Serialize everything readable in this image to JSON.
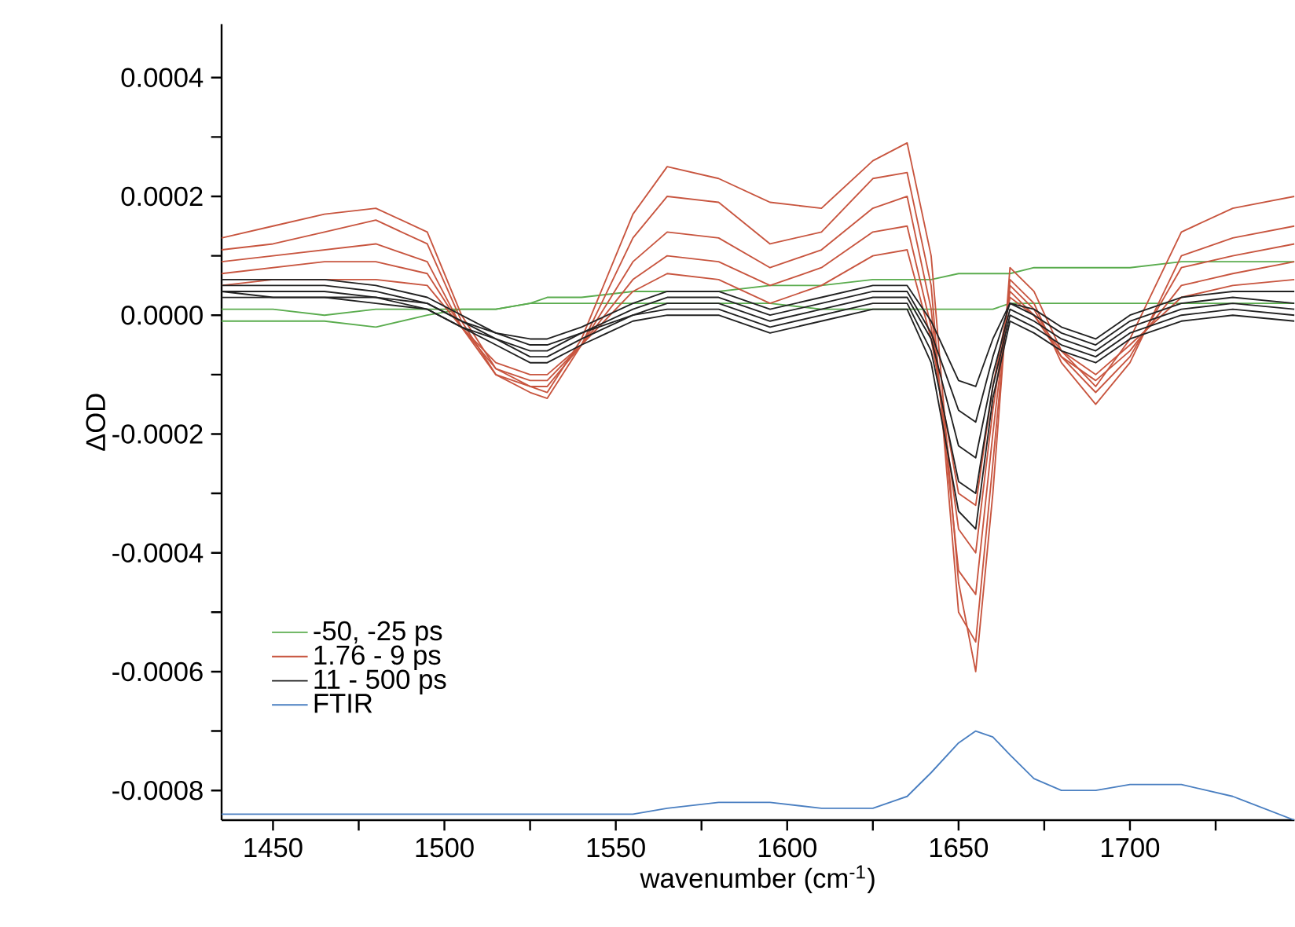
{
  "chart_data": {
    "type": "line",
    "xlabel": "wavenumber (cm$^{-1}$)",
    "ylabel": "ΔOD",
    "legend": "bottom left",
    "x": [
      1435,
      1450,
      1465,
      1480,
      1495,
      1505,
      1515,
      1525,
      1530,
      1540,
      1555,
      1565,
      1580,
      1595,
      1610,
      1625,
      1635,
      1642,
      1650,
      1655,
      1660,
      1665,
      1672,
      1680,
      1690,
      1700,
      1715,
      1730,
      1748
    ],
    "xlim": [
      1435,
      1748
    ],
    "ylim": [
      -0.00085,
      0.00049
    ],
    "xticks": [
      1450,
      {
        "value": 1475,
        "label": null
      },
      1500,
      {
        "value": 1525,
        "label": null
      },
      1550,
      {
        "value": 1575,
        "label": null
      },
      1600,
      {
        "value": 1625,
        "label": null
      },
      1650,
      {
        "value": 1675,
        "label": null
      },
      1700,
      {
        "value": 1725,
        "label": null
      }
    ],
    "yticks": [
      {
        "value": -0.0008,
        "label": "-0.0008"
      },
      {
        "value": -0.0007,
        "label": null
      },
      {
        "value": -0.0006,
        "label": "-0.0006"
      },
      {
        "value": -0.0005,
        "label": null
      },
      {
        "value": -0.0004,
        "label": "-0.0004"
      },
      {
        "value": -0.0003,
        "label": null
      },
      {
        "value": -0.0002,
        "label": "-0.0002"
      },
      {
        "value": -0.0001,
        "label": null
      },
      {
        "value": 0.0,
        "label": "0.0000"
      },
      {
        "value": 0.0001,
        "label": null
      },
      {
        "value": 0.0002,
        "label": "0.0002"
      },
      {
        "value": 0.0003,
        "label": null
      },
      {
        "value": 0.0004,
        "label": "0.0004"
      }
    ],
    "series": [
      {
        "name": "-50, -25 ps",
        "color": "#5aac4e",
        "values": [
          -1e-05,
          -1e-05,
          -1e-05,
          -2e-05,
          0.0,
          1e-05,
          1e-05,
          2e-05,
          3e-05,
          3e-05,
          4e-05,
          4e-05,
          4e-05,
          5e-05,
          5e-05,
          6e-05,
          6e-05,
          6e-05,
          7e-05,
          7e-05,
          7e-05,
          7e-05,
          8e-05,
          8e-05,
          8e-05,
          8e-05,
          9e-05,
          9e-05,
          9e-05
        ]
      },
      {
        "color": "#5aac4e",
        "values": [
          1e-05,
          1e-05,
          0.0,
          1e-05,
          1e-05,
          1e-05,
          1e-05,
          2e-05,
          2e-05,
          2e-05,
          2e-05,
          2e-05,
          2e-05,
          2e-05,
          1e-05,
          1e-05,
          1e-05,
          1e-05,
          1e-05,
          1e-05,
          1e-05,
          2e-05,
          2e-05,
          2e-05,
          2e-05,
          2e-05,
          2e-05,
          2e-05,
          2e-05
        ]
      },
      {
        "name": "1.76 - 9 ps",
        "color": "#c8553f",
        "values": [
          0.00013,
          0.00015,
          0.00017,
          0.00018,
          0.00014,
          0.0,
          -9e-05,
          -0.00012,
          -0.00013,
          -4e-05,
          0.00017,
          0.00025,
          0.00023,
          0.00019,
          0.00018,
          0.00026,
          0.00029,
          0.0001,
          -0.00045,
          -0.0006,
          -0.0003,
          8e-05,
          4e-05,
          -6e-05,
          -0.00012,
          -4e-05,
          0.00014,
          0.00018,
          0.0002
        ]
      },
      {
        "color": "#c8553f",
        "values": [
          0.00011,
          0.00012,
          0.00014,
          0.00016,
          0.00012,
          -1e-05,
          -0.0001,
          -0.00013,
          -0.00014,
          -5e-05,
          0.00013,
          0.0002,
          0.00019,
          0.00012,
          0.00014,
          0.00023,
          0.00024,
          5e-05,
          -0.0005,
          -0.00055,
          -0.00025,
          6e-05,
          2e-05,
          -8e-05,
          -0.00015,
          -8e-05,
          0.0001,
          0.00013,
          0.00015
        ]
      },
      {
        "color": "#c8553f",
        "values": [
          9e-05,
          0.0001,
          0.00011,
          0.00012,
          9e-05,
          -2e-05,
          -0.0001,
          -0.00012,
          -0.00012,
          -5e-05,
          9e-05,
          0.00014,
          0.00013,
          8e-05,
          0.00011,
          0.00018,
          0.0002,
          1e-05,
          -0.00043,
          -0.00047,
          -0.0002,
          5e-05,
          1e-05,
          -7e-05,
          -0.00013,
          -7e-05,
          8e-05,
          0.0001,
          0.00012
        ]
      },
      {
        "color": "#c8553f",
        "values": [
          7e-05,
          8e-05,
          9e-05,
          9e-05,
          7e-05,
          -2e-05,
          -9e-05,
          -0.00011,
          -0.00011,
          -5e-05,
          6e-05,
          0.0001,
          9e-05,
          5e-05,
          8e-05,
          0.00014,
          0.00015,
          -2e-05,
          -0.00036,
          -0.0004,
          -0.00016,
          4e-05,
          0.0,
          -7e-05,
          -0.00011,
          -6e-05,
          5e-05,
          7e-05,
          9e-05
        ]
      },
      {
        "color": "#c8553f",
        "values": [
          5e-05,
          6e-05,
          6e-05,
          6e-05,
          5e-05,
          -2e-05,
          -8e-05,
          -0.0001,
          -0.0001,
          -5e-05,
          4e-05,
          7e-05,
          6e-05,
          2e-05,
          5e-05,
          0.0001,
          0.00011,
          -4e-05,
          -0.0003,
          -0.00032,
          -0.00012,
          3e-05,
          0.0,
          -6e-05,
          -0.0001,
          -5e-05,
          3e-05,
          5e-05,
          6e-05
        ]
      },
      {
        "name": "11 - 500 ps",
        "color": "#222222",
        "values": [
          6e-05,
          6e-05,
          6e-05,
          5e-05,
          3e-05,
          0.0,
          -3e-05,
          -4e-05,
          -4e-05,
          -2e-05,
          2e-05,
          4e-05,
          4e-05,
          1e-05,
          3e-05,
          5e-05,
          5e-05,
          -1e-05,
          -0.00011,
          -0.00012,
          -4e-05,
          2e-05,
          1e-05,
          -2e-05,
          -4e-05,
          0.0,
          3e-05,
          4e-05,
          4e-05
        ]
      },
      {
        "color": "#222222",
        "values": [
          5e-05,
          5e-05,
          5e-05,
          4e-05,
          2e-05,
          -1e-05,
          -3e-05,
          -5e-05,
          -5e-05,
          -3e-05,
          1e-05,
          3e-05,
          3e-05,
          0.0,
          2e-05,
          4e-05,
          4e-05,
          -3e-05,
          -0.00016,
          -0.00018,
          -7e-05,
          2e-05,
          0.0,
          -3e-05,
          -5e-05,
          -1e-05,
          2e-05,
          3e-05,
          2e-05
        ]
      },
      {
        "color": "#222222",
        "values": [
          4e-05,
          4e-05,
          4e-05,
          3e-05,
          2e-05,
          -1e-05,
          -4e-05,
          -6e-05,
          -6e-05,
          -3e-05,
          0.0,
          2e-05,
          2e-05,
          -1e-05,
          1e-05,
          3e-05,
          3e-05,
          -4e-05,
          -0.00022,
          -0.00024,
          -0.0001,
          1e-05,
          -1e-05,
          -4e-05,
          -6e-05,
          -2e-05,
          1e-05,
          2e-05,
          1e-05
        ]
      },
      {
        "color": "#222222",
        "values": [
          4e-05,
          3e-05,
          3e-05,
          3e-05,
          1e-05,
          -2e-05,
          -4e-05,
          -7e-05,
          -7e-05,
          -4e-05,
          0.0,
          1e-05,
          1e-05,
          -2e-05,
          0.0,
          2e-05,
          2e-05,
          -6e-05,
          -0.00028,
          -0.0003,
          -0.00012,
          0.0,
          -2e-05,
          -5e-05,
          -7e-05,
          -3e-05,
          0.0,
          1e-05,
          0.0
        ]
      },
      {
        "color": "#222222",
        "values": [
          3e-05,
          3e-05,
          3e-05,
          2e-05,
          1e-05,
          -2e-05,
          -5e-05,
          -8e-05,
          -8e-05,
          -5e-05,
          -1e-05,
          0.0,
          0.0,
          -3e-05,
          -1e-05,
          1e-05,
          1e-05,
          -8e-05,
          -0.00033,
          -0.00036,
          -0.00014,
          -1e-05,
          -3e-05,
          -6e-05,
          -8e-05,
          -4e-05,
          -1e-05,
          0.0,
          -1e-05
        ]
      },
      {
        "name": "FTIR",
        "color": "#4a7fc1",
        "values": [
          -0.00084,
          -0.00084,
          -0.00084,
          -0.00084,
          -0.00084,
          -0.00084,
          -0.00084,
          -0.00084,
          -0.00084,
          -0.00084,
          -0.00084,
          -0.00083,
          -0.00082,
          -0.00082,
          -0.00083,
          -0.00083,
          -0.00081,
          -0.00077,
          -0.00072,
          -0.0007,
          -0.00071,
          -0.00074,
          -0.00078,
          -0.0008,
          -0.0008,
          -0.00079,
          -0.00079,
          -0.00081,
          -0.00085
        ]
      }
    ]
  }
}
